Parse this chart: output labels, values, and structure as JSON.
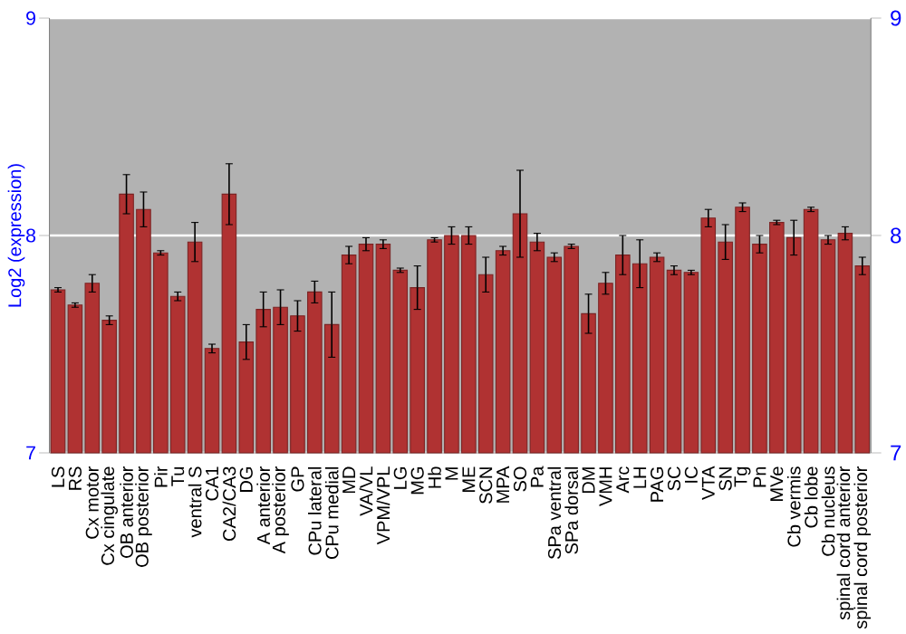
{
  "chart_data": {
    "type": "bar",
    "ylabel": "Log2 (expression)",
    "categories": [
      "LS",
      "RS",
      "Cx motor",
      "Cx cingulate",
      "OB anterior",
      "OB posterior",
      "Pir",
      "Tu",
      "ventral S",
      "CA1",
      "CA2/CA3",
      "DG",
      "A anterior",
      "A posterior",
      "GP",
      "CPu lateral",
      "CPu medial",
      "MD",
      "VA/VL",
      "VPM/VPL",
      "LG",
      "MG",
      "Hb",
      "M",
      "ME",
      "SCN",
      "MPA",
      "SO",
      "Pa",
      "SPa ventral",
      "SPa dorsal",
      "DM",
      "VMH",
      "Arc",
      "LH",
      "PAG",
      "SC",
      "IC",
      "VTA",
      "SN",
      "Tg",
      "Pn",
      "MVe",
      "Cb vermis",
      "Cb lobe",
      "Cb nucleus",
      "spinal cord anterior",
      "spinal cord posterior"
    ],
    "values": [
      7.75,
      7.68,
      7.78,
      7.61,
      8.19,
      8.12,
      7.92,
      7.72,
      7.97,
      7.48,
      8.19,
      7.51,
      7.66,
      7.67,
      7.63,
      7.74,
      7.59,
      7.91,
      7.96,
      7.96,
      7.84,
      7.76,
      7.98,
      8.0,
      8.0,
      7.82,
      7.93,
      8.1,
      7.97,
      7.9,
      7.95,
      7.64,
      7.78,
      7.91,
      7.87,
      7.9,
      7.84,
      7.83,
      8.08,
      7.97,
      8.13,
      7.96,
      8.06,
      7.99,
      8.12,
      7.98,
      8.01,
      7.86
    ],
    "errors": [
      0.01,
      0.01,
      0.04,
      0.02,
      0.09,
      0.08,
      0.01,
      0.02,
      0.09,
      0.02,
      0.14,
      0.08,
      0.08,
      0.08,
      0.07,
      0.05,
      0.15,
      0.04,
      0.03,
      0.02,
      0.01,
      0.1,
      0.01,
      0.04,
      0.04,
      0.08,
      0.02,
      0.2,
      0.04,
      0.02,
      0.01,
      0.09,
      0.05,
      0.09,
      0.11,
      0.02,
      0.02,
      0.01,
      0.04,
      0.08,
      0.02,
      0.04,
      0.01,
      0.08,
      0.01,
      0.02,
      0.03,
      0.04
    ],
    "color": "#b03232",
    "ylim": [
      7,
      9
    ],
    "yticks": [
      7,
      8,
      9
    ],
    "y2lim": [
      7,
      9
    ],
    "y2ticks": [
      7,
      8,
      9
    ],
    "grid": "y"
  }
}
